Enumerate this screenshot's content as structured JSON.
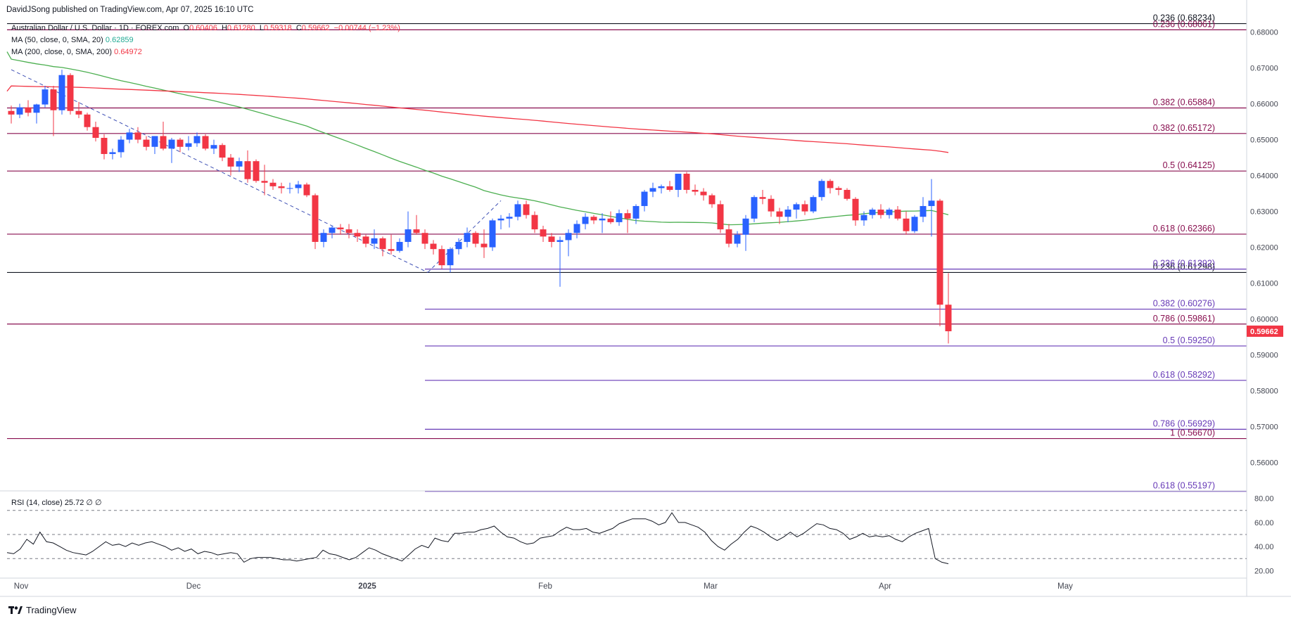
{
  "header": {
    "published": "DavidJSong published on TradingView.com, Apr 07, 2025 16:10 UTC",
    "symbol_title": "Australian Dollar / U.S. Dollar · 1D · FOREX.com",
    "ohlc": {
      "O": "0.60406",
      "H": "0.61280",
      "L": "0.59318",
      "C": "0.59662",
      "change": "−0.00744 (−1.23%)"
    },
    "ma50": {
      "label": "MA (50, close, 0, SMA, 20)",
      "value": "0.62859"
    },
    "ma200": {
      "label": "MA (200, close, 0, SMA, 200)",
      "value": "0.64972"
    },
    "rsi": {
      "label": "RSI (14, close)",
      "value": "25.72",
      "extra": "∅ ∅"
    }
  },
  "footer": {
    "brand": "TradingView"
  },
  "colors": {
    "up": "#2962ff",
    "down": "#f23645",
    "ma50": "#4caf50",
    "ma200": "#f23645",
    "fib_dark": "#880e4f",
    "fib_purple": "#673ab7",
    "price_badge": "#f23645"
  },
  "chart_data": [
    {
      "type": "candlestick",
      "title": "Australian Dollar / U.S. Dollar · 1D · FOREX.com",
      "y_axis_ticks": [
        "0.68000",
        "0.67000",
        "0.66000",
        "0.65000",
        "0.64000",
        "0.63000",
        "0.62000",
        "0.61000",
        "0.60000",
        "0.59000",
        "0.58000",
        "0.57000",
        "0.56000"
      ],
      "ylim": [
        0.5525,
        0.685
      ],
      "x_axis_labels": [
        "Nov",
        "Dec",
        "2025",
        "Feb",
        "Mar",
        "Apr",
        "May"
      ],
      "last_price": "0.59662",
      "grid": false,
      "candles": [
        [
          0.658,
          0.6595,
          0.6545,
          0.657
        ],
        [
          0.657,
          0.66,
          0.656,
          0.659
        ],
        [
          0.659,
          0.661,
          0.6565,
          0.6575
        ],
        [
          0.6575,
          0.66,
          0.6545,
          0.6598
        ],
        [
          0.6598,
          0.665,
          0.659,
          0.664
        ],
        [
          0.664,
          0.665,
          0.651,
          0.6582
        ],
        [
          0.6582,
          0.6695,
          0.657,
          0.668
        ],
        [
          0.668,
          0.6685,
          0.657,
          0.658
        ],
        [
          0.658,
          0.6605,
          0.656,
          0.657
        ],
        [
          0.657,
          0.6575,
          0.6525,
          0.6535
        ],
        [
          0.6535,
          0.655,
          0.6495,
          0.6505
        ],
        [
          0.6505,
          0.6515,
          0.6445,
          0.646
        ],
        [
          0.646,
          0.6475,
          0.6445,
          0.6465
        ],
        [
          0.6465,
          0.651,
          0.645,
          0.65
        ],
        [
          0.65,
          0.653,
          0.649,
          0.652
        ],
        [
          0.652,
          0.6535,
          0.649,
          0.65
        ],
        [
          0.65,
          0.651,
          0.647,
          0.648
        ],
        [
          0.648,
          0.651,
          0.646,
          0.651
        ],
        [
          0.651,
          0.655,
          0.647,
          0.6475
        ],
        [
          0.6475,
          0.6505,
          0.6435,
          0.65
        ],
        [
          0.65,
          0.6505,
          0.6465,
          0.648
        ],
        [
          0.648,
          0.651,
          0.647,
          0.649
        ],
        [
          0.649,
          0.652,
          0.648,
          0.651
        ],
        [
          0.651,
          0.6515,
          0.647,
          0.6475
        ],
        [
          0.6475,
          0.65,
          0.646,
          0.6485
        ],
        [
          0.6485,
          0.649,
          0.644,
          0.645
        ],
        [
          0.645,
          0.646,
          0.64,
          0.6425
        ],
        [
          0.6425,
          0.645,
          0.641,
          0.644
        ],
        [
          0.644,
          0.647,
          0.638,
          0.639
        ],
        [
          0.644,
          0.6445,
          0.638,
          0.6385
        ],
        [
          0.6385,
          0.643,
          0.6345,
          0.638
        ],
        [
          0.638,
          0.639,
          0.636,
          0.637
        ],
        [
          0.637,
          0.638,
          0.635,
          0.6365
        ],
        [
          0.6365,
          0.638,
          0.635,
          0.6365
        ],
        [
          0.6365,
          0.6385,
          0.635,
          0.6375
        ],
        [
          0.6375,
          0.638,
          0.634,
          0.6345
        ],
        [
          0.6345,
          0.635,
          0.6195,
          0.6215
        ],
        [
          0.6215,
          0.625,
          0.62,
          0.624
        ],
        [
          0.624,
          0.626,
          0.6225,
          0.6255
        ],
        [
          0.6255,
          0.6265,
          0.6235,
          0.625
        ],
        [
          0.625,
          0.6265,
          0.6225,
          0.624
        ],
        [
          0.624,
          0.625,
          0.6215,
          0.623
        ],
        [
          0.623,
          0.6235,
          0.62,
          0.621
        ],
        [
          0.621,
          0.625,
          0.6195,
          0.6225
        ],
        [
          0.6225,
          0.623,
          0.6175,
          0.6195
        ],
        [
          0.6195,
          0.6235,
          0.618,
          0.619
        ],
        [
          0.619,
          0.6225,
          0.6185,
          0.6215
        ],
        [
          0.6215,
          0.63,
          0.62,
          0.625
        ],
        [
          0.625,
          0.629,
          0.6235,
          0.624
        ],
        [
          0.624,
          0.625,
          0.6195,
          0.621
        ],
        [
          0.621,
          0.622,
          0.618,
          0.6195
        ],
        [
          0.6195,
          0.6205,
          0.614,
          0.615
        ],
        [
          0.615,
          0.62,
          0.613,
          0.6195
        ],
        [
          0.6195,
          0.6225,
          0.618,
          0.6215
        ],
        [
          0.6215,
          0.6255,
          0.62,
          0.624
        ],
        [
          0.624,
          0.6245,
          0.62,
          0.621
        ],
        [
          0.621,
          0.625,
          0.617,
          0.62
        ],
        [
          0.62,
          0.628,
          0.619,
          0.6275
        ],
        [
          0.6275,
          0.629,
          0.625,
          0.628
        ],
        [
          0.628,
          0.6295,
          0.6255,
          0.6285
        ],
        [
          0.6285,
          0.633,
          0.6275,
          0.632
        ],
        [
          0.632,
          0.633,
          0.628,
          0.629
        ],
        [
          0.629,
          0.63,
          0.624,
          0.625
        ],
        [
          0.625,
          0.626,
          0.6215,
          0.623
        ],
        [
          0.623,
          0.624,
          0.62,
          0.6215
        ],
        [
          0.6215,
          0.623,
          0.609,
          0.622
        ],
        [
          0.622,
          0.625,
          0.6175,
          0.624
        ],
        [
          0.624,
          0.6275,
          0.6225,
          0.6265
        ],
        [
          0.6265,
          0.6295,
          0.625,
          0.6285
        ],
        [
          0.6285,
          0.629,
          0.6265,
          0.6275
        ],
        [
          0.6275,
          0.6295,
          0.624,
          0.628
        ],
        [
          0.628,
          0.63,
          0.6265,
          0.627
        ],
        [
          0.627,
          0.6305,
          0.626,
          0.6295
        ],
        [
          0.6295,
          0.6305,
          0.624,
          0.628
        ],
        [
          0.628,
          0.632,
          0.6265,
          0.6315
        ],
        [
          0.6315,
          0.636,
          0.63,
          0.6355
        ],
        [
          0.6355,
          0.638,
          0.634,
          0.6365
        ],
        [
          0.6365,
          0.6375,
          0.635,
          0.637
        ],
        [
          0.637,
          0.6385,
          0.6355,
          0.636
        ],
        [
          0.636,
          0.6405,
          0.634,
          0.6405
        ],
        [
          0.6405,
          0.641,
          0.635,
          0.636
        ],
        [
          0.636,
          0.6375,
          0.6345,
          0.6355
        ],
        [
          0.6355,
          0.6365,
          0.633,
          0.6345
        ],
        [
          0.6345,
          0.635,
          0.631,
          0.632
        ],
        [
          0.632,
          0.633,
          0.624,
          0.625
        ],
        [
          0.625,
          0.6265,
          0.62,
          0.621
        ],
        [
          0.621,
          0.6245,
          0.62,
          0.6235
        ],
        [
          0.6235,
          0.629,
          0.619,
          0.628
        ],
        [
          0.628,
          0.6345,
          0.627,
          0.634
        ],
        [
          0.634,
          0.636,
          0.632,
          0.6335
        ],
        [
          0.6335,
          0.6345,
          0.6285,
          0.63
        ],
        [
          0.63,
          0.631,
          0.6265,
          0.6285
        ],
        [
          0.6285,
          0.6315,
          0.627,
          0.6305
        ],
        [
          0.6305,
          0.6325,
          0.628,
          0.632
        ],
        [
          0.632,
          0.633,
          0.629,
          0.63
        ],
        [
          0.63,
          0.6345,
          0.6295,
          0.634
        ],
        [
          0.634,
          0.639,
          0.633,
          0.6385
        ],
        [
          0.6385,
          0.639,
          0.635,
          0.6365
        ],
        [
          0.6365,
          0.637,
          0.6345,
          0.636
        ],
        [
          0.636,
          0.6365,
          0.633,
          0.6335
        ],
        [
          0.6335,
          0.634,
          0.626,
          0.6275
        ],
        [
          0.6275,
          0.63,
          0.626,
          0.629
        ],
        [
          0.629,
          0.631,
          0.628,
          0.6305
        ],
        [
          0.6305,
          0.632,
          0.628,
          0.629
        ],
        [
          0.629,
          0.631,
          0.628,
          0.6305
        ],
        [
          0.6305,
          0.6315,
          0.6275,
          0.628
        ],
        [
          0.628,
          0.63,
          0.6235,
          0.6245
        ],
        [
          0.6245,
          0.629,
          0.624,
          0.6285
        ],
        [
          0.6285,
          0.634,
          0.627,
          0.6315
        ],
        [
          0.6315,
          0.639,
          0.623,
          0.633
        ],
        [
          0.633,
          0.6335,
          0.598,
          0.604
        ],
        [
          0.604,
          0.6128,
          0.5932,
          0.5966
        ]
      ]
    },
    {
      "type": "line",
      "title": "RSI (14, close)",
      "y_axis_ticks": [
        "80.00",
        "60.00",
        "40.00",
        "20.00"
      ],
      "ylim": [
        15,
        85
      ],
      "levels": [
        70,
        50,
        30
      ],
      "values": [
        35,
        34,
        38,
        46,
        42,
        52,
        44,
        43,
        40,
        37,
        35,
        34,
        33,
        36,
        40,
        44,
        41,
        42,
        40,
        43,
        41,
        43,
        44,
        42,
        40,
        37,
        39,
        36,
        38,
        34,
        36,
        35,
        33,
        34,
        35,
        34,
        27,
        30,
        31,
        31,
        31,
        30,
        29,
        29,
        28,
        29,
        30,
        31,
        37,
        34,
        33,
        31,
        29,
        31,
        35,
        39,
        37,
        34,
        32,
        30,
        28,
        33,
        38,
        41,
        39,
        47,
        45,
        44,
        51,
        51,
        52,
        52,
        54,
        55,
        57,
        52,
        48,
        47,
        44,
        42,
        43,
        47,
        48,
        49,
        53,
        56,
        54,
        54,
        55,
        52,
        51,
        53,
        55,
        59,
        61,
        63,
        63,
        63,
        61,
        58,
        60,
        68,
        60,
        60,
        58,
        56,
        52,
        45,
        40,
        37,
        42,
        46,
        52,
        57,
        55,
        52,
        48,
        45,
        48,
        52,
        48,
        51,
        55,
        59,
        58,
        55,
        54,
        51,
        46,
        48,
        51,
        48,
        49,
        48,
        49,
        46,
        44,
        48,
        51,
        53,
        55,
        30,
        27,
        25.72
      ]
    }
  ],
  "fib_levels": [
    {
      "label": "0.236 (0.68234)",
      "price": 0.68234,
      "color": "#131722",
      "full": true
    },
    {
      "label": "0.236 (0.68061)",
      "price": 0.68061,
      "color": "#880e4f",
      "full": true
    },
    {
      "label": "0.382 (0.65884)",
      "price": 0.65884,
      "color": "#880e4f",
      "full": true
    },
    {
      "label": "0.382 (0.65172)",
      "price": 0.65172,
      "color": "#880e4f",
      "full": true
    },
    {
      "label": "0.5 (0.64125)",
      "price": 0.64125,
      "color": "#880e4f",
      "full": true
    },
    {
      "label": "0.618 (0.62366)",
      "price": 0.62366,
      "color": "#880e4f",
      "full": true
    },
    {
      "label": "0.236 (0.61298)",
      "price": 0.61298,
      "color": "#131722",
      "full": true
    },
    {
      "label": "0.236 (0.61392)",
      "price": 0.61392,
      "color": "#673ab7",
      "full": false
    },
    {
      "label": "0.382 (0.60276)",
      "price": 0.60276,
      "color": "#673ab7",
      "full": false
    },
    {
      "label": "0.786 (0.59861)",
      "price": 0.59861,
      "color": "#880e4f",
      "full": true
    },
    {
      "label": "0.5 (0.59250)",
      "price": 0.5925,
      "color": "#673ab7",
      "full": false
    },
    {
      "label": "0.618 (0.58292)",
      "price": 0.58292,
      "color": "#673ab7",
      "full": false
    },
    {
      "label": "0.786 (0.56929)",
      "price": 0.56929,
      "color": "#673ab7",
      "full": false
    },
    {
      "label": "1 (0.56670)",
      "price": 0.5667,
      "color": "#880e4f",
      "full": true
    },
    {
      "label": "0.618 (0.55197)",
      "price": 0.55197,
      "color": "#673ab7",
      "full": false
    }
  ]
}
